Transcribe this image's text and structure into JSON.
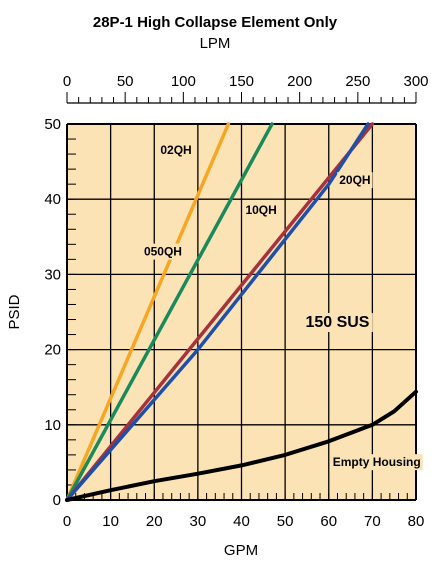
{
  "chart_data": {
    "type": "line",
    "title": "28P-1 High Collapse Element Only",
    "subtitle": "LPM",
    "xlabel": "GPM",
    "ylabel": "PSID",
    "x_secondary_label": "LPM",
    "xlim": [
      0,
      80
    ],
    "ylim": [
      0,
      50
    ],
    "x_ticks": [
      0,
      10,
      20,
      30,
      40,
      50,
      60,
      70,
      80
    ],
    "y_ticks": [
      0,
      10,
      20,
      30,
      40,
      50
    ],
    "x_secondary_ticks": [
      0,
      50,
      100,
      150,
      200,
      250,
      300
    ],
    "x_secondary_lim": [
      0,
      300
    ],
    "grid": true,
    "background_color": "#fbe3b6",
    "annotation": "150 SUS",
    "series": [
      {
        "name": "02QH",
        "color": "#f6a623",
        "points": [
          [
            0,
            0
          ],
          [
            37,
            50
          ]
        ]
      },
      {
        "name": "050QH",
        "color": "#1a8a5a",
        "points": [
          [
            0,
            0
          ],
          [
            47,
            50
          ]
        ]
      },
      {
        "name": "10QH",
        "color": "#a8323c",
        "points": [
          [
            0,
            0
          ],
          [
            70,
            50
          ]
        ]
      },
      {
        "name": "20QH",
        "color": "#1f4fa6",
        "points": [
          [
            0,
            0
          ],
          [
            30,
            20
          ],
          [
            60,
            42
          ],
          [
            69,
            50
          ]
        ]
      },
      {
        "name": "Empty Housing",
        "color": "#000000",
        "points": [
          [
            0,
            0
          ],
          [
            10,
            1.3
          ],
          [
            20,
            2.5
          ],
          [
            30,
            3.5
          ],
          [
            40,
            4.6
          ],
          [
            50,
            6
          ],
          [
            60,
            7.8
          ],
          [
            70,
            10
          ],
          [
            75,
            11.8
          ],
          [
            80,
            14.4
          ]
        ]
      }
    ],
    "series_labels": {
      "02QH": {
        "x": 25,
        "y": 46
      },
      "050QH": {
        "x": 22,
        "y": 32.5
      },
      "10QH": {
        "x": 44.5,
        "y": 38
      },
      "20QH": {
        "x": 66,
        "y": 42
      },
      "Empty Housing": {
        "x": 71,
        "y": 4.5
      }
    },
    "annotation_pos": {
      "x": 62,
      "y": 23
    }
  }
}
